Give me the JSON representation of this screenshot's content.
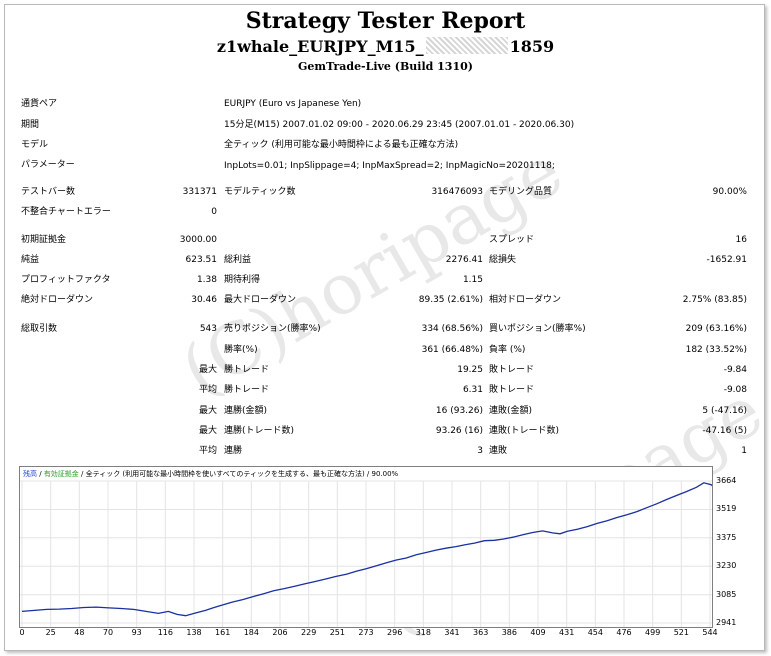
{
  "report": {
    "title": "Strategy Tester Report",
    "subtitle_left": "z1whale_EURJPY_M15_",
    "subtitle_right": "1859",
    "build": "GemTrade-Live (Build 1310)",
    "watermark": "(C)horipage"
  },
  "info": {
    "symbol_label": "通貨ペア",
    "symbol_value": "EURJPY (Euro vs Japanese Yen)",
    "period_label": "期間",
    "period_value": "15分足(M15) 2007.01.02 09:00 - 2020.06.29 23:45 (2007.01.01 - 2020.06.30)",
    "model_label": "モデル",
    "model_value": "全ティック (利用可能な最小時間枠による最も正確な方法)",
    "params_label": "パラメーター",
    "params_value": "InpLots=0.01; InpSlippage=4; InpMaxSpread=2; InpMagicNo=20201118;"
  },
  "stats": {
    "bars_label": "テストバー数",
    "bars_value": "331371",
    "ticks_label": "モデルティック数",
    "ticks_value": "316476093",
    "quality_label": "モデリング品質",
    "quality_value": "90.00%",
    "mismatch_label": "不整合チャートエラー",
    "mismatch_value": "0",
    "deposit_label": "初期証拠金",
    "deposit_value": "3000.00",
    "spread_label": "スプレッド",
    "spread_value": "16",
    "net_label": "純益",
    "net_value": "623.51",
    "gross_profit_label": "総利益",
    "gross_profit_value": "2276.41",
    "gross_loss_label": "総損失",
    "gross_loss_value": "-1652.91",
    "pf_label": "プロフィットファクタ",
    "pf_value": "1.38",
    "expected_label": "期待利得",
    "expected_value": "1.15",
    "abs_dd_label": "絶対ドローダウン",
    "abs_dd_value": "30.46",
    "max_dd_label": "最大ドローダウン",
    "max_dd_value": "89.35 (2.61%)",
    "rel_dd_label": "相対ドローダウン",
    "rel_dd_value": "2.75% (83.85)",
    "trades_label": "総取引数",
    "trades_value": "543",
    "short_label": "売りポジション(勝率%)",
    "short_value": "334 (68.56%)",
    "long_label": "買いポジション(勝率%)",
    "long_value": "209 (63.16%)",
    "win_label": "勝率(%)",
    "win_value": "361 (66.48%)",
    "loss_label": "負率 (%)",
    "loss_value": "182 (33.52%)",
    "q_max": "最大",
    "q_avg": "平均",
    "largest_win_label": "勝トレード",
    "largest_win_value": "19.25",
    "largest_loss_label": "敗トレード",
    "largest_loss_value": "-9.84",
    "avg_win_label": "勝トレード",
    "avg_win_value": "6.31",
    "avg_loss_label": "敗トレード",
    "avg_loss_value": "-9.08",
    "consec_wins_amt_label": "連勝(金額)",
    "consec_wins_amt_value": "16 (93.26)",
    "consec_loss_amt_label": "連敗(金額)",
    "consec_loss_amt_value": "5 (-47.16)",
    "consec_wins_cnt_label": "連勝(トレード数)",
    "consec_wins_cnt_value": "93.26 (16)",
    "consec_loss_cnt_label": "連敗(トレード数)",
    "consec_loss_cnt_value": "-47.16 (5)",
    "avg_consec_win_label": "連勝",
    "avg_consec_win_value": "3",
    "avg_consec_loss_label": "連敗",
    "avg_consec_loss_value": "1"
  },
  "chart_legend": {
    "balance": "残高",
    "sep1": " / ",
    "equity": "有効証拠金",
    "rest": " / 全ティック (利用可能な最小時間枠を使いすべてのティックを生成する、最も正確な方法) / 90.00%"
  },
  "chart_data": {
    "type": "line",
    "x_ticks": [
      "0",
      "25",
      "48",
      "70",
      "93",
      "116",
      "138",
      "161",
      "184",
      "206",
      "229",
      "251",
      "273",
      "296",
      "318",
      "341",
      "363",
      "386",
      "409",
      "431",
      "454",
      "476",
      "499",
      "521",
      "544"
    ],
    "y_ticks": [
      "3664",
      "3519",
      "3375",
      "3230",
      "3085",
      "2941"
    ],
    "ylim": [
      2941,
      3664
    ],
    "xlim": [
      0,
      555
    ],
    "series": [
      {
        "values": [
          [
            0,
            3000
          ],
          [
            10,
            3005
          ],
          [
            20,
            3010
          ],
          [
            30,
            3012
          ],
          [
            40,
            3015
          ],
          [
            50,
            3020
          ],
          [
            60,
            3022
          ],
          [
            70,
            3018
          ],
          [
            80,
            3015
          ],
          [
            90,
            3010
          ],
          [
            100,
            3000
          ],
          [
            110,
            2990
          ],
          [
            118,
            3000
          ],
          [
            125,
            2985
          ],
          [
            132,
            2978
          ],
          [
            140,
            2992
          ],
          [
            148,
            3005
          ],
          [
            155,
            3020
          ],
          [
            163,
            3035
          ],
          [
            170,
            3048
          ],
          [
            178,
            3060
          ],
          [
            186,
            3075
          ],
          [
            195,
            3090
          ],
          [
            203,
            3105
          ],
          [
            211,
            3115
          ],
          [
            220,
            3128
          ],
          [
            228,
            3140
          ],
          [
            236,
            3152
          ],
          [
            245,
            3165
          ],
          [
            253,
            3178
          ],
          [
            262,
            3190
          ],
          [
            270,
            3205
          ],
          [
            278,
            3218
          ],
          [
            286,
            3232
          ],
          [
            294,
            3248
          ],
          [
            302,
            3262
          ],
          [
            310,
            3272
          ],
          [
            318,
            3288
          ],
          [
            326,
            3300
          ],
          [
            334,
            3312
          ],
          [
            342,
            3322
          ],
          [
            350,
            3330
          ],
          [
            358,
            3340
          ],
          [
            365,
            3348
          ],
          [
            373,
            3360
          ],
          [
            381,
            3362
          ],
          [
            388,
            3368
          ],
          [
            396,
            3378
          ],
          [
            404,
            3390
          ],
          [
            412,
            3402
          ],
          [
            420,
            3410
          ],
          [
            428,
            3400
          ],
          [
            434,
            3395
          ],
          [
            440,
            3408
          ],
          [
            448,
            3418
          ],
          [
            456,
            3432
          ],
          [
            464,
            3448
          ],
          [
            472,
            3462
          ],
          [
            480,
            3478
          ],
          [
            488,
            3492
          ],
          [
            496,
            3508
          ],
          [
            504,
            3528
          ],
          [
            512,
            3548
          ],
          [
            520,
            3570
          ],
          [
            528,
            3590
          ],
          [
            536,
            3610
          ],
          [
            544,
            3632
          ],
          [
            550,
            3655
          ],
          [
            556,
            3645
          ],
          [
            562,
            3610
          ]
        ]
      }
    ]
  }
}
